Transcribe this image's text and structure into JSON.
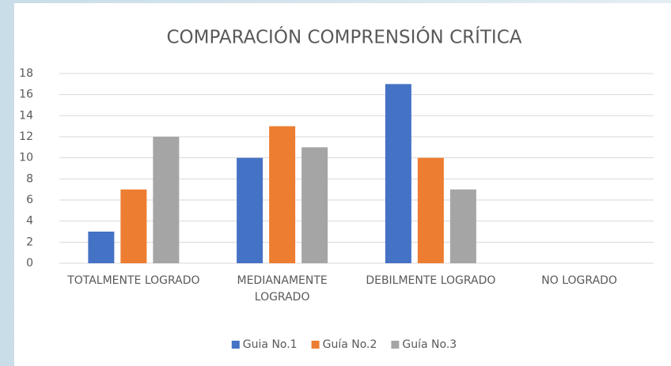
{
  "chart_data": {
    "type": "bar",
    "title": "COMPARACIÓN COMPRENSIÓN CRÍTICA",
    "categories": [
      "TOTALMENTE LOGRADO",
      "MEDIANAMENTE LOGRADO",
      "DEBILMENTE LOGRADO",
      "NO LOGRADO"
    ],
    "series": [
      {
        "name": "Guia No.1",
        "color": "#4472c4",
        "values": [
          3,
          10,
          17,
          0
        ]
      },
      {
        "name": "Guía No.2",
        "color": "#ed7d31",
        "values": [
          7,
          13,
          10,
          0
        ]
      },
      {
        "name": "Guía No.3",
        "color": "#a5a5a5",
        "values": [
          12,
          11,
          7,
          0
        ]
      }
    ],
    "ylim": [
      0,
      18
    ],
    "yticks": [
      0,
      2,
      4,
      6,
      8,
      10,
      12,
      14,
      16,
      18
    ],
    "grid": true,
    "legend": "bottom"
  }
}
